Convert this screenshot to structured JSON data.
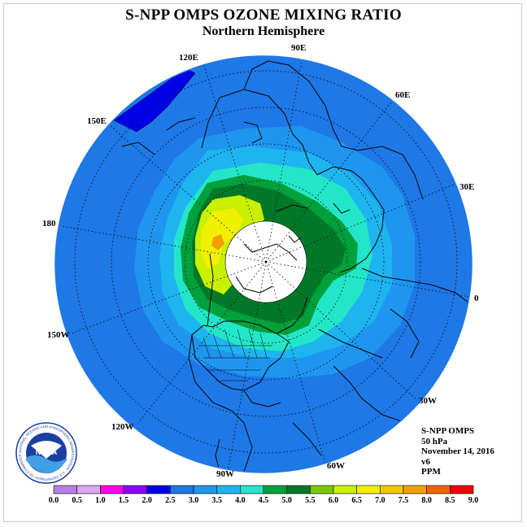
{
  "title": "S-NPP OMPS OZONE MIXING RATIO",
  "subtitle": "Northern Hemisphere",
  "longitude_labels": {
    "e120": "120E",
    "e90": "90E",
    "e60": "60E",
    "e30": "30E",
    "zero": "0",
    "w30": "30W",
    "w60": "60W",
    "w90": "90W",
    "w120": "120W",
    "w150": "150W",
    "d180": "180",
    "e150": "150E"
  },
  "info": {
    "instrument": "S-NPP OMPS",
    "level": "50 hPa",
    "date": "November 14, 2016",
    "version": "v6",
    "units": "PPM"
  },
  "logo": {
    "text": "NOAA",
    "ring_text": "NATIONAL OCEANIC AND ATMOSPHERIC ADMINISTRATION · U.S. DEPARTMENT OF COMMERCE"
  },
  "colorbar": {
    "ticks": [
      "0.0",
      "0.5",
      "1.0",
      "1.5",
      "2.0",
      "2.5",
      "3.0",
      "3.5",
      "4.0",
      "4.5",
      "5.0",
      "5.5",
      "6.0",
      "6.5",
      "7.0",
      "7.5",
      "8.0",
      "8.5",
      "9.0"
    ],
    "colors": [
      "#b77fe8",
      "#d9a8f0",
      "#ff00e6",
      "#8c00ff",
      "#0000e6",
      "#1e78e6",
      "#1e96f0",
      "#1eb4f0",
      "#23e6c8",
      "#00a03c",
      "#007828",
      "#78c800",
      "#c8f000",
      "#f0f000",
      "#f0c800",
      "#f0a000",
      "#f06400",
      "#f00000",
      "#965a3c"
    ]
  },
  "colors": {
    "band_2_0": "#1e78e6",
    "band_2_5": "#1e96f0",
    "band_3_0": "#1eb4f0",
    "band_3_5": "#23e6c8",
    "band_4_0": "#00a03c",
    "band_4_5": "#007828",
    "band_5_5": "#c8f000",
    "band_6_0": "#f0f000",
    "band_1_5": "#0000e6",
    "band_7_0": "#f0a000",
    "noaa_blue": "#1b3fa0"
  }
}
